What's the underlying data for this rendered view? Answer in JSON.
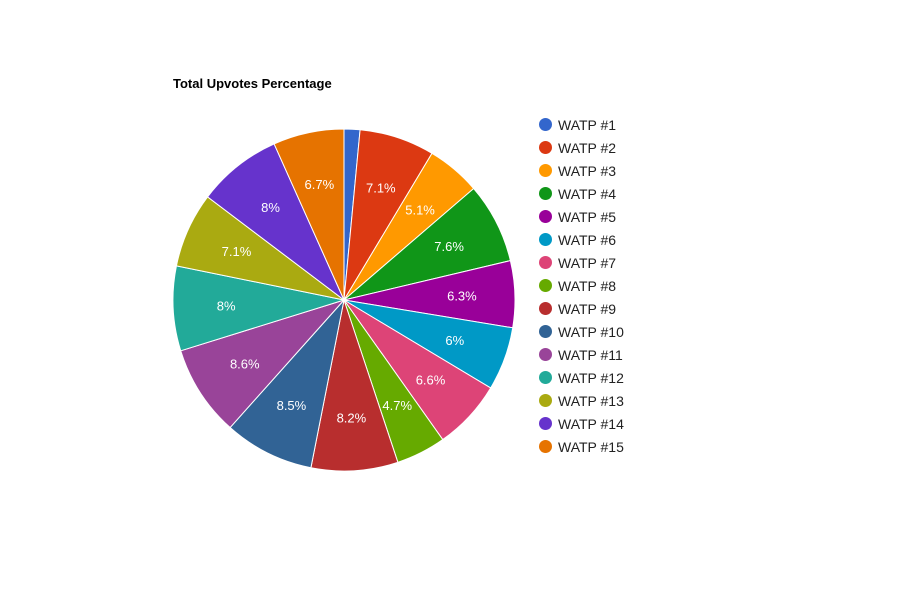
{
  "chart_data": {
    "type": "pie",
    "title": "Total Upvotes Percentage",
    "legend_position": "right",
    "slices": [
      {
        "label": "WATP #1",
        "value": 1.5,
        "display": "",
        "color": "#3366cc"
      },
      {
        "label": "WATP #2",
        "value": 7.1,
        "display": "7.1%",
        "color": "#dc3912"
      },
      {
        "label": "WATP #3",
        "value": 5.1,
        "display": "5.1%",
        "color": "#ff9900"
      },
      {
        "label": "WATP #4",
        "value": 7.6,
        "display": "7.6%",
        "color": "#109618"
      },
      {
        "label": "WATP #5",
        "value": 6.3,
        "display": "6.3%",
        "color": "#990099"
      },
      {
        "label": "WATP #6",
        "value": 6.0,
        "display": "6%",
        "color": "#0099c6"
      },
      {
        "label": "WATP #7",
        "value": 6.6,
        "display": "6.6%",
        "color": "#dd4477"
      },
      {
        "label": "WATP #8",
        "value": 4.7,
        "display": "4.7%",
        "color": "#66aa00"
      },
      {
        "label": "WATP #9",
        "value": 8.2,
        "display": "8.2%",
        "color": "#b82e2e"
      },
      {
        "label": "WATP #10",
        "value": 8.5,
        "display": "8.5%",
        "color": "#316395"
      },
      {
        "label": "WATP #11",
        "value": 8.6,
        "display": "8.6%",
        "color": "#994499"
      },
      {
        "label": "WATP #12",
        "value": 8.0,
        "display": "8%",
        "color": "#22aa99"
      },
      {
        "label": "WATP #13",
        "value": 7.1,
        "display": "7.1%",
        "color": "#aaaa11"
      },
      {
        "label": "WATP #14",
        "value": 8.0,
        "display": "8%",
        "color": "#6633cc"
      },
      {
        "label": "WATP #15",
        "value": 6.7,
        "display": "6.7%",
        "color": "#e67300"
      }
    ]
  }
}
